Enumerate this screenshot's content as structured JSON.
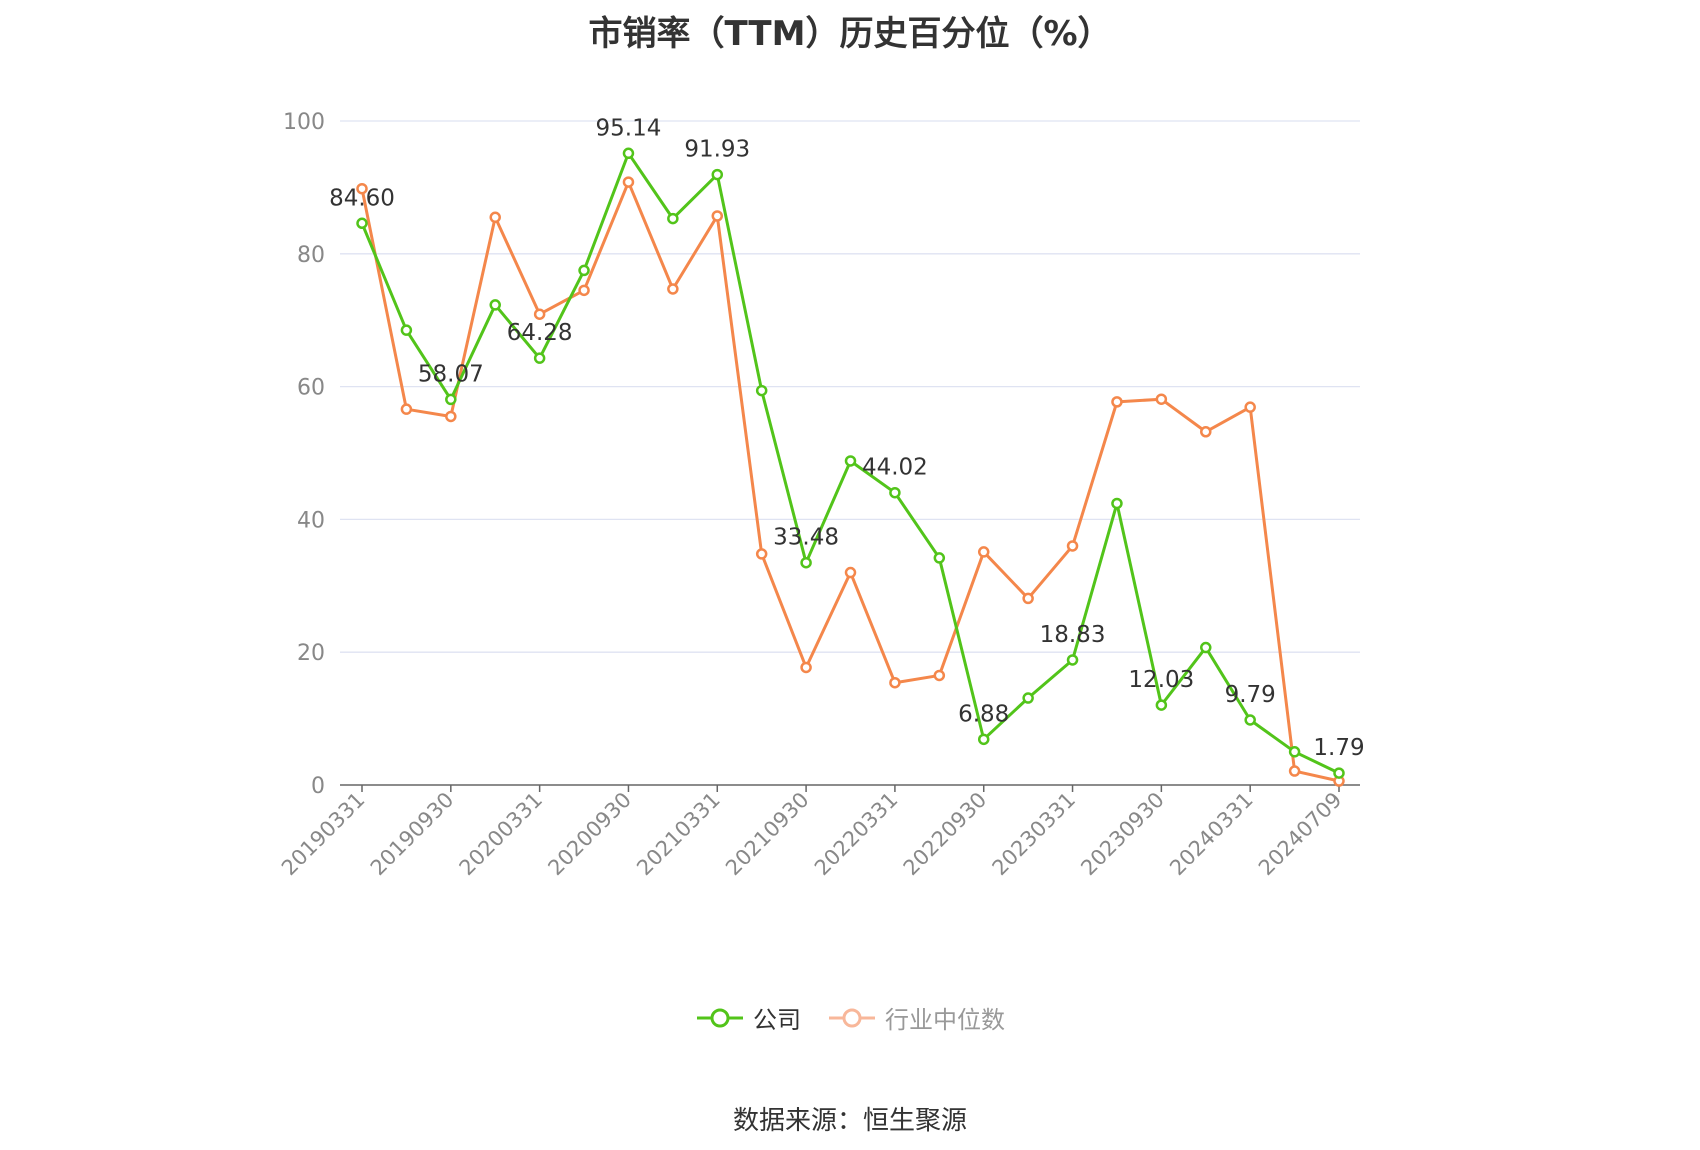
{
  "title": "市销率（TTM）历史百分位（%）",
  "source": "数据来源：恒生聚源",
  "chart_data": {
    "type": "line",
    "title": "市销率（TTM）历史百分位（%）",
    "xlabel": "",
    "ylabel": "",
    "ylim": [
      0,
      100
    ],
    "yticks": [
      0,
      20,
      40,
      60,
      80,
      100
    ],
    "grid": true,
    "legend_position": "bottom",
    "x_tick_labels": [
      "20190331",
      "20190930",
      "20200331",
      "20200930",
      "20210331",
      "20210930",
      "20220331",
      "20220930",
      "20230331",
      "20230930",
      "20240331",
      "20240709"
    ],
    "x": [
      "20190331",
      "20190630",
      "20190930",
      "20191231",
      "20200331",
      "20200630",
      "20200930",
      "20201231",
      "20210331",
      "20210630",
      "20210930",
      "20211231",
      "20220331",
      "20220630",
      "20220930",
      "20221231",
      "20230331",
      "20230630",
      "20230930",
      "20231231",
      "20240331",
      "20240630",
      "20240709"
    ],
    "series": [
      {
        "name": "公司",
        "color": "#52c41a",
        "values": [
          84.6,
          68.5,
          58.07,
          72.3,
          64.28,
          77.5,
          95.14,
          85.3,
          91.93,
          59.4,
          33.48,
          48.8,
          44.02,
          34.2,
          6.88,
          13.1,
          18.83,
          42.4,
          12.03,
          20.7,
          9.79,
          5.0,
          1.79
        ],
        "labels": [
          "84.60",
          "",
          "58.07",
          "",
          "64.28",
          "",
          "95.14",
          "",
          "91.93",
          "",
          "33.48",
          "",
          "44.02",
          "",
          "6.88",
          "",
          "18.83",
          "",
          "12.03",
          "",
          "9.79",
          "",
          "1.79"
        ]
      },
      {
        "name": "行业中位数",
        "color": "#f4874b",
        "values": [
          89.8,
          56.6,
          55.5,
          85.5,
          70.9,
          74.5,
          90.8,
          74.7,
          85.7,
          34.8,
          17.7,
          32.0,
          15.4,
          16.5,
          35.1,
          28.1,
          36.0,
          57.7,
          58.1,
          53.2,
          56.9,
          2.1,
          0.6
        ]
      }
    ]
  },
  "legend": {
    "items": [
      {
        "label": "公司",
        "color": "#52c41a",
        "text_color": "#333333"
      },
      {
        "label": "行业中位数",
        "color": "#f4874b",
        "text_color": "#999999"
      }
    ]
  }
}
